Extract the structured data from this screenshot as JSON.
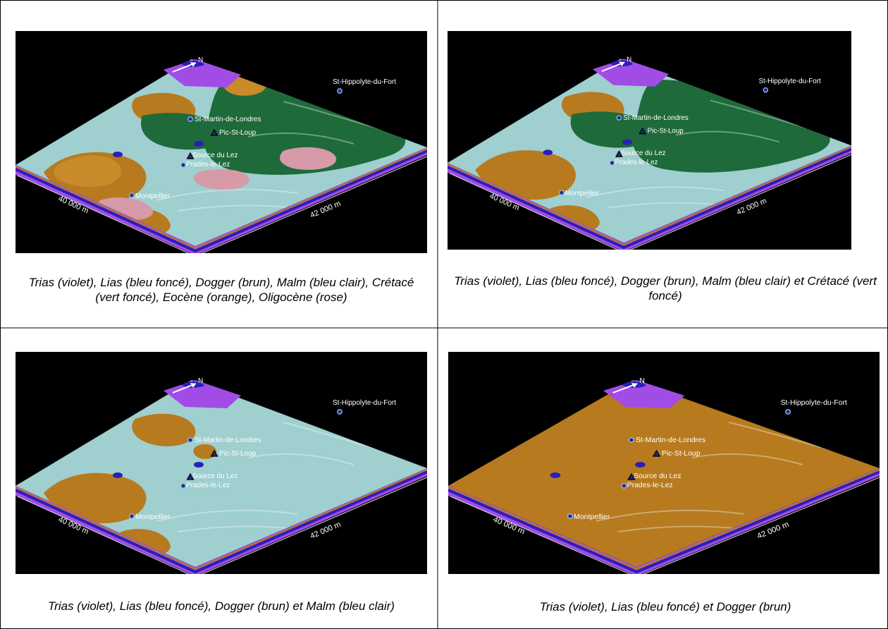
{
  "north_label": "N",
  "distance_left": "40 000 m",
  "distance_right": "42 000 m",
  "places": {
    "st_hippolyte": "St-Hippolyte-du-Fort",
    "st_martin": "St-Martin-de-Londres",
    "pic_st_loup": "Pic-St-Loup",
    "source_lez": "Source du Lez",
    "prades": "Prades-le-Lez",
    "montpellier": "Montpellier"
  },
  "colors": {
    "trias": "#a24ce6",
    "lias": "#2a1fb8",
    "dogger": "#b77a1f",
    "malm": "#9fcfcf",
    "cretace": "#1e6a3a",
    "eocene": "#c98a2a",
    "oligocene": "#d69aa8"
  },
  "panels": [
    {
      "caption": "Trias (violet), Lias (bleu foncé), Dogger (brun), Malm (bleu clair), Crétacé (vert foncé), Eocène (orange), Oligocène (rose)",
      "layers": [
        "trias",
        "lias",
        "dogger",
        "malm",
        "cretace",
        "eocene",
        "oligocene"
      ]
    },
    {
      "caption": "Trias (violet), Lias (bleu foncé), Dogger (brun), Malm (bleu clair) et Crétacé (vert foncé)",
      "layers": [
        "trias",
        "lias",
        "dogger",
        "malm",
        "cretace"
      ]
    },
    {
      "caption": "Trias (violet), Lias (bleu foncé), Dogger (brun) et Malm (bleu clair)",
      "layers": [
        "trias",
        "lias",
        "dogger",
        "malm"
      ]
    },
    {
      "caption": "Trias (violet), Lias (bleu foncé) et Dogger (brun)",
      "layers": [
        "trias",
        "lias",
        "dogger"
      ]
    }
  ]
}
